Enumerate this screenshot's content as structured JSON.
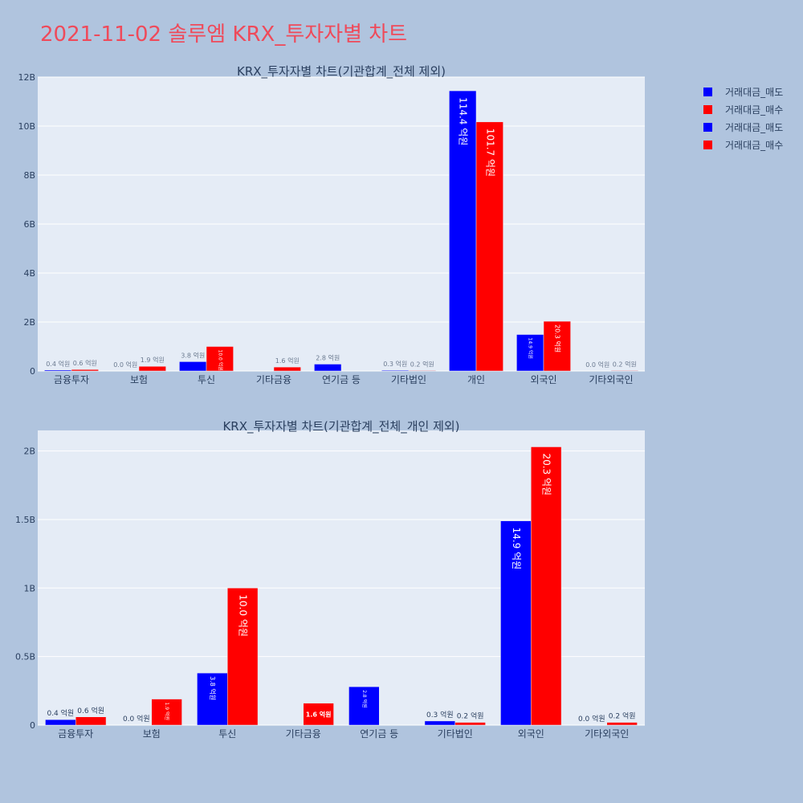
{
  "page": {
    "title": "2021-11-02 솔루엠 KRX_투자자별 차트"
  },
  "legend": [
    {
      "label": "거래대금_매도",
      "color": "#0000ff"
    },
    {
      "label": "거래대금_매수",
      "color": "#ff0000"
    },
    {
      "label": "거래대금_매도",
      "color": "#0000ff"
    },
    {
      "label": "거래대금_매수",
      "color": "#ff0000"
    }
  ],
  "chart_data": [
    {
      "type": "bar",
      "title": "KRX_투자자별 차트(기관합계_전체 제외)",
      "categories": [
        "금융투자",
        "보험",
        "투신",
        "기타금융",
        "연기금 등",
        "기타법인",
        "개인",
        "외국인",
        "기타외국인"
      ],
      "ylim": [
        0,
        12000000000
      ],
      "yticks": [
        0,
        2000000000,
        4000000000,
        6000000000,
        8000000000,
        10000000000,
        12000000000
      ],
      "yticklabels": [
        "0",
        "2B",
        "4B",
        "6B",
        "8B",
        "10B",
        "12B"
      ],
      "grid": true,
      "legend_position": "top-right",
      "series": [
        {
          "name": "거래대금_매도",
          "color": "#0000ff",
          "values": [
            40000000,
            0,
            380000000,
            null,
            280000000,
            30000000,
            11440000000,
            1490000000,
            0
          ],
          "labels": [
            "0.4 억원",
            "0.0 억원",
            "3.8 억원",
            "",
            "2.8 억원",
            "0.3 억원",
            "114.4 억원",
            "14.9 억원",
            "0.0 억원"
          ]
        },
        {
          "name": "거래대금_매수",
          "color": "#ff0000",
          "values": [
            60000000,
            190000000,
            1000000000,
            160000000,
            null,
            20000000,
            10170000000,
            2030000000,
            20000000
          ],
          "labels": [
            "0.6 억원",
            "1.9 억원",
            "10.0 억원",
            "1.6 억원",
            "",
            "0.2 억원",
            "101.7 억원",
            "20.3 억원",
            "0.2 억원"
          ]
        }
      ]
    },
    {
      "type": "bar",
      "title": "KRX_투자자별 차트(기관합계_전체_개인 제외)",
      "categories": [
        "금융투자",
        "보험",
        "투신",
        "기타금융",
        "연기금 등",
        "기타법인",
        "외국인",
        "기타외국인"
      ],
      "ylim": [
        0,
        2150000000
      ],
      "yticks": [
        0,
        500000000,
        1000000000,
        1500000000,
        2000000000
      ],
      "yticklabels": [
        "0",
        "0.5B",
        "1B",
        "1.5B",
        "2B"
      ],
      "grid": true,
      "series": [
        {
          "name": "거래대금_매도",
          "color": "#0000ff",
          "values": [
            40000000,
            0,
            380000000,
            null,
            280000000,
            30000000,
            1490000000,
            0
          ],
          "labels": [
            "0.4 억원",
            "0.0 억원",
            "3.8 억원",
            "",
            "2.8 억원",
            "0.3 억원",
            "14.9 억원",
            "0.0 억원"
          ]
        },
        {
          "name": "거래대금_매수",
          "color": "#ff0000",
          "values": [
            60000000,
            190000000,
            1000000000,
            160000000,
            null,
            20000000,
            2030000000,
            20000000
          ],
          "labels": [
            "0.6 억원",
            "1.9 억원",
            "10.0 억원",
            "1.6 억원",
            "",
            "0.2 억원",
            "20.3 억원",
            "0.2 억원"
          ]
        }
      ]
    }
  ]
}
